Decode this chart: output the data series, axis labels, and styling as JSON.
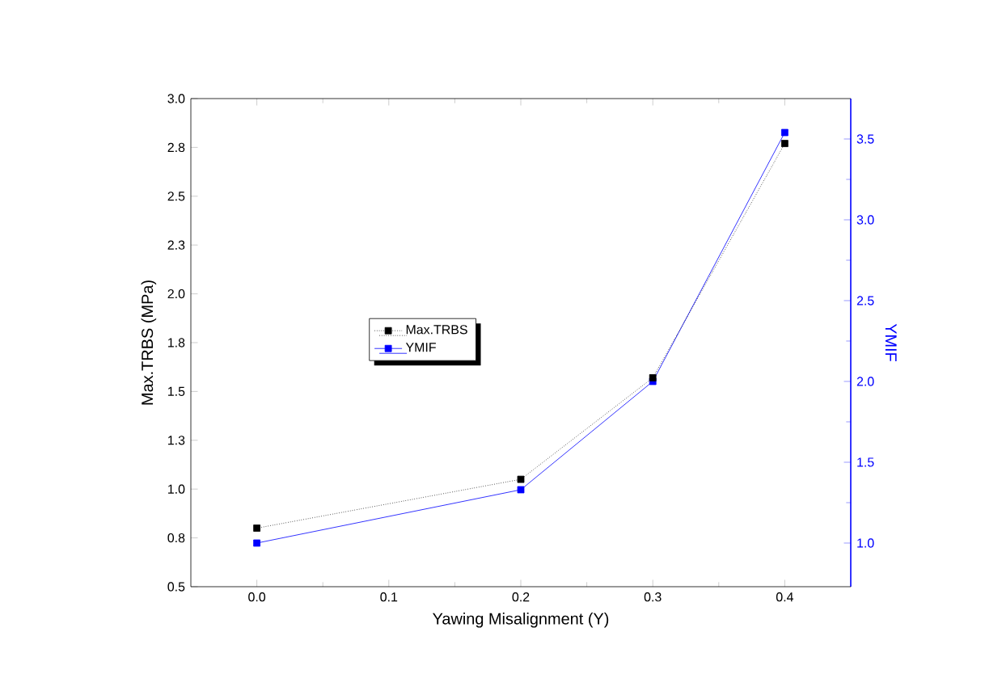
{
  "chart_data": {
    "type": "line",
    "xlabel": "Yawing Misalignment (Y)",
    "ylabel": "Max.TRBS (MPa)",
    "y2label": "YMIF",
    "x": [
      0.0,
      0.2,
      0.3,
      0.4
    ],
    "series": [
      {
        "name": "Max.TRBS",
        "color": "#000000",
        "values": [
          0.8,
          1.05,
          1.57,
          2.77
        ],
        "line_style": "dotted"
      },
      {
        "name": "YMIF",
        "color": "#0000ff",
        "values": [
          1.0,
          1.33,
          2.0,
          3.54
        ],
        "axis": "y2",
        "line_style": "solid"
      }
    ],
    "xlim": [
      -0.05,
      0.45
    ],
    "xticks": [
      {
        "value": 0.0,
        "label": "0.0"
      },
      0.1,
      0.2,
      0.3,
      0.4
    ],
    "ylim": [
      0.5,
      3.0
    ],
    "yticks": [
      {
        "value": 0.5,
        "label": "0.5"
      },
      {
        "value": 0.75,
        "label": "0.8"
      },
      {
        "value": 1.0,
        "label": "1.0"
      },
      {
        "value": 1.25,
        "label": "1.3"
      },
      {
        "value": 1.5,
        "label": "1.5"
      },
      {
        "value": 1.75,
        "label": "1.8"
      },
      {
        "value": 2.0,
        "label": "2.0"
      },
      {
        "value": 2.25,
        "label": "2.3"
      },
      {
        "value": 2.5,
        "label": "2.5"
      },
      {
        "value": 2.75,
        "label": "2.8"
      },
      {
        "value": 3.0,
        "label": "3.0"
      }
    ],
    "y2lim": [
      0.73,
      3.75
    ],
    "y2ticks": [
      {
        "value": 1.0,
        "label": "1.0"
      },
      1.5,
      {
        "value": 2.0,
        "label": "2.0"
      },
      2.5,
      {
        "value": 3.0,
        "label": "3.0"
      },
      3.5
    ],
    "marker": "square",
    "legend": "left",
    "grid": false
  }
}
